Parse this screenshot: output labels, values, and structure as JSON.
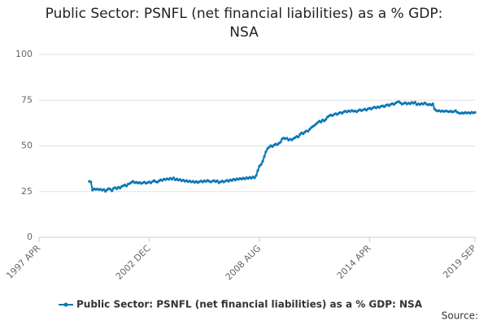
{
  "chart_data": {
    "type": "line",
    "title": "Public Sector: PSNFL (net financial liabilities) as a % GDP: NSA",
    "source_label": "Source:",
    "categories": [
      "1997 APR",
      null,
      null,
      null,
      null,
      null,
      null,
      null,
      null,
      null,
      null,
      null,
      null,
      null,
      null,
      null,
      null,
      null,
      null,
      null,
      null,
      null,
      null,
      null,
      null,
      null,
      null,
      null,
      null,
      null,
      null,
      null,
      null,
      null,
      null,
      null,
      null,
      null,
      null,
      null,
      null,
      null,
      null,
      null,
      null,
      null,
      null,
      null,
      null,
      null,
      null,
      null,
      null,
      null,
      null,
      null,
      null,
      null,
      null,
      null,
      null,
      null,
      null,
      null,
      null,
      null,
      null,
      null,
      "2002 DEC",
      null,
      null,
      null,
      null,
      null,
      null,
      null,
      null,
      null,
      null,
      null,
      null,
      null,
      null,
      null,
      null,
      null,
      null,
      null,
      null,
      null,
      null,
      null,
      null,
      null,
      null,
      null,
      null,
      null,
      null,
      null,
      null,
      null,
      null,
      null,
      null,
      null,
      null,
      null,
      null,
      null,
      null,
      null,
      null,
      null,
      null,
      null,
      null,
      null,
      null,
      null,
      null,
      null,
      null,
      null,
      null,
      null,
      null,
      null,
      null,
      null,
      null,
      null,
      null,
      null,
      null,
      null,
      "2008 AUG",
      null,
      null,
      null,
      null,
      null,
      null,
      null,
      null,
      null,
      null,
      null,
      null,
      null,
      null,
      null,
      null,
      null,
      null,
      null,
      null,
      null,
      null,
      null,
      null,
      null,
      null,
      null,
      null,
      null,
      null,
      null,
      null,
      null,
      null,
      null,
      null,
      null,
      null,
      null,
      null,
      null,
      null,
      null,
      null,
      null,
      null,
      null,
      null,
      null,
      null,
      null,
      null,
      null,
      null,
      null,
      null,
      null,
      null,
      null,
      null,
      null,
      null,
      null,
      null,
      null,
      null,
      null,
      "2014 APR",
      null,
      null,
      null,
      null,
      null,
      null,
      null,
      null,
      null,
      null,
      null,
      null,
      null,
      null,
      null,
      null,
      null,
      null,
      null,
      null,
      null,
      null,
      null,
      null,
      null,
      null,
      null,
      null,
      null,
      null,
      null,
      null,
      null,
      null,
      null,
      null,
      null,
      null,
      null,
      null,
      null,
      null,
      null,
      null,
      null,
      null,
      null,
      null,
      null,
      null,
      null,
      null,
      null,
      null,
      null,
      null,
      null,
      null,
      null,
      null,
      null,
      null,
      null,
      null,
      "2019 SEP"
    ],
    "series": [
      {
        "name": "Public Sector: PSNFL (net financial liabilities) as a % GDP: NSA",
        "color": "#0a77b6",
        "values": [
          null,
          null,
          null,
          null,
          null,
          null,
          null,
          null,
          null,
          null,
          null,
          null,
          null,
          null,
          null,
          null,
          null,
          null,
          null,
          null,
          null,
          null,
          null,
          null,
          null,
          null,
          null,
          null,
          null,
          null,
          null,
          30.6,
          30.2,
          25.8,
          26.5,
          26.1,
          26.4,
          26.0,
          26.3,
          25.7,
          26.2,
          25.1,
          26.0,
          26.6,
          26.3,
          25.4,
          26.8,
          27.2,
          26.5,
          27.4,
          26.9,
          27.8,
          28.2,
          28.6,
          28.0,
          29.1,
          29.4,
          30.0,
          30.6,
          29.8,
          30.1,
          29.6,
          30.0,
          29.4,
          29.8,
          30.2,
          29.5,
          29.9,
          30.3,
          29.7,
          30.5,
          31.0,
          30.4,
          30.1,
          30.8,
          31.4,
          31.0,
          31.8,
          31.5,
          32.0,
          31.6,
          32.3,
          31.7,
          32.5,
          31.4,
          31.9,
          31.2,
          31.6,
          30.9,
          31.3,
          30.6,
          31.0,
          30.4,
          30.8,
          30.2,
          30.6,
          30.0,
          30.5,
          29.9,
          30.4,
          30.8,
          30.2,
          30.9,
          30.5,
          31.1,
          30.6,
          30.2,
          30.7,
          31.0,
          30.4,
          30.9,
          29.8,
          30.3,
          30.8,
          30.2,
          30.7,
          31.2,
          30.6,
          31.4,
          31.0,
          31.8,
          31.3,
          32.0,
          31.6,
          32.2,
          31.8,
          32.4,
          31.9,
          32.6,
          32.1,
          32.8,
          32.3,
          33.0,
          32.5,
          33.8,
          36.5,
          38.9,
          39.8,
          41.5,
          44.2,
          46.8,
          48.5,
          49.3,
          50.1,
          49.6,
          50.4,
          51.0,
          50.6,
          51.4,
          52.0,
          53.8,
          54.3,
          53.9,
          54.2,
          53.1,
          53.7,
          53.2,
          54.0,
          54.5,
          55.2,
          54.8,
          56.3,
          57.1,
          56.6,
          57.5,
          58.2,
          58.0,
          59.1,
          60.0,
          60.6,
          61.2,
          62.0,
          62.8,
          63.5,
          63.0,
          64.2,
          63.6,
          64.5,
          65.8,
          66.4,
          66.9,
          66.5,
          67.2,
          67.6,
          67.1,
          67.9,
          68.3,
          67.8,
          68.6,
          69.0,
          68.5,
          69.2,
          68.8,
          69.4,
          68.9,
          69.1,
          68.6,
          69.3,
          69.8,
          69.2,
          69.7,
          70.1,
          69.5,
          70.3,
          70.6,
          70.1,
          70.8,
          71.2,
          70.7,
          71.4,
          71.0,
          71.6,
          71.9,
          71.4,
          72.1,
          72.5,
          72.0,
          72.7,
          73.1,
          72.6,
          73.4,
          73.9,
          74.2,
          73.5,
          72.8,
          73.2,
          73.6,
          72.9,
          73.4,
          73.0,
          73.8,
          73.3,
          73.9,
          72.5,
          73.0,
          72.6,
          73.2,
          72.8,
          73.5,
          72.9,
          72.4,
          72.8,
          72.3,
          73.0,
          70.2,
          69.4,
          69.0,
          69.3,
          68.8,
          69.1,
          68.7,
          69.2,
          68.9,
          68.6,
          69.0,
          68.5,
          68.8,
          69.3,
          68.4,
          68.0,
          67.7,
          68.1,
          67.8,
          68.3,
          67.9,
          68.2,
          67.8,
          68.4,
          68.0,
          68.3
        ]
      }
    ],
    "ylim": [
      0,
      100
    ],
    "yticks": [
      0,
      25,
      50,
      75,
      100
    ],
    "grid": true
  }
}
